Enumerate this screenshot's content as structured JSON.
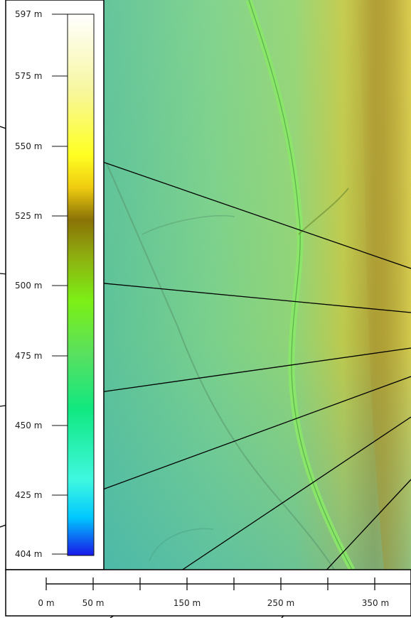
{
  "legend": {
    "elevation_labels": [
      "597 m",
      "575 m",
      "550 m",
      "525 m",
      "500 m",
      "475 m",
      "450 m",
      "425 m",
      "404 m"
    ],
    "min_elevation_m": 404,
    "max_elevation_m": 597,
    "ramp_colors": [
      "#ffffff",
      "#f7f7a0",
      "#ffff22",
      "#f0cc10",
      "#8a7206",
      "#8eb010",
      "#7cf016",
      "#58e060",
      "#10e880",
      "#40f8e0",
      "#00c8ff",
      "#1818e8"
    ]
  },
  "scale_bar": {
    "labels": [
      "0 m",
      "50 m",
      "150 m",
      "250 m",
      "350 m"
    ]
  },
  "colors": {
    "terrain_low": "#48c8a8",
    "terrain_mid": "#78d888",
    "terrain_high": "#d8c838",
    "ridge": "#b09a20",
    "channel": "#7ae060"
  }
}
